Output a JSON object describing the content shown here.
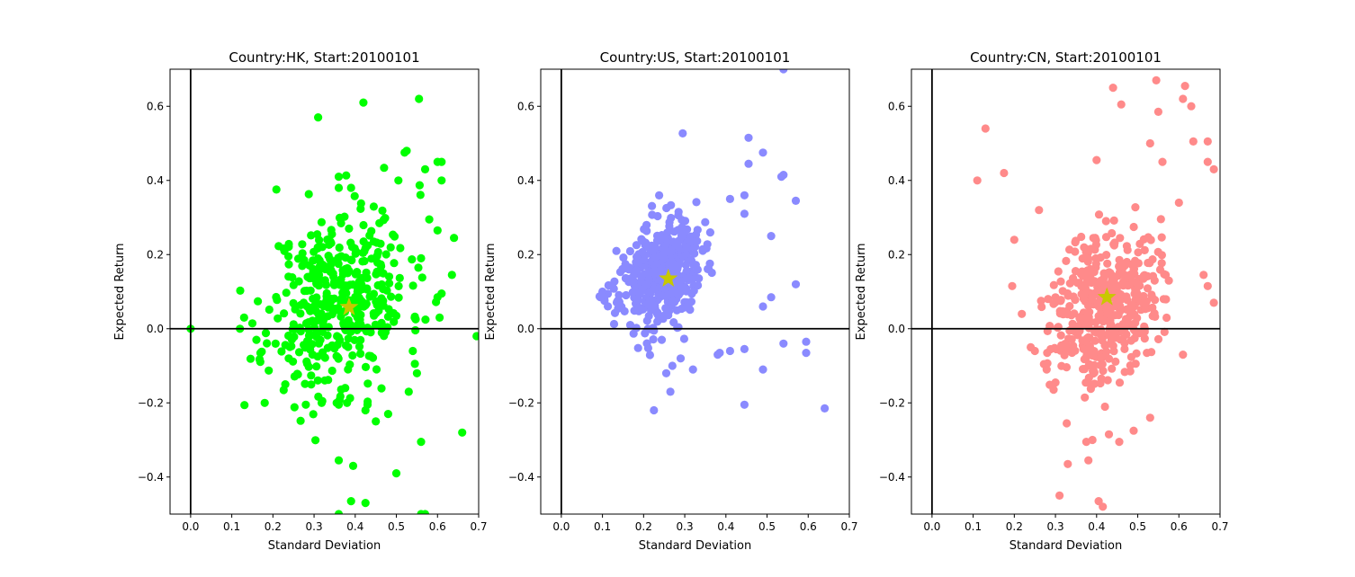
{
  "chart_data": [
    {
      "type": "scatter",
      "title": "Country:HK, Start:20100101",
      "xlabel": "Standard Deviation",
      "ylabel": "Expected Return",
      "xlim": [
        -0.05,
        0.7
      ],
      "ylim": [
        -0.5,
        0.7
      ],
      "xticks": [
        0.0,
        0.1,
        0.2,
        0.3,
        0.4,
        0.5,
        0.6,
        0.7
      ],
      "yticks": [
        -0.4,
        -0.2,
        0.0,
        0.2,
        0.4,
        0.6
      ],
      "xtick_labels": [
        "0.0",
        "0.1",
        "0.2",
        "0.3",
        "0.4",
        "0.5",
        "0.6",
        "0.7"
      ],
      "ytick_labels": [
        "−0.4",
        "−0.2",
        "0.0",
        "0.2",
        "0.4",
        "0.6"
      ],
      "grid": false,
      "point_color": "#00ff00",
      "marker_color": "#c8c800",
      "marker": {
        "x": 0.385,
        "y": 0.058
      },
      "cluster": {
        "mx": 0.36,
        "my": 0.08,
        "sx": 0.085,
        "sy": 0.12,
        "n": 420,
        "seed": 11
      },
      "points": [
        [
          0.0,
          0.0
        ],
        [
          0.31,
          0.57
        ],
        [
          0.42,
          0.61
        ],
        [
          0.555,
          0.62
        ],
        [
          0.52,
          0.475
        ],
        [
          0.525,
          0.48
        ],
        [
          0.6,
          0.45
        ],
        [
          0.61,
          0.45
        ],
        [
          0.57,
          0.43
        ],
        [
          0.61,
          0.4
        ],
        [
          0.505,
          0.4
        ],
        [
          0.58,
          0.295
        ],
        [
          0.6,
          0.265
        ],
        [
          0.64,
          0.245
        ],
        [
          0.56,
          0.19
        ],
        [
          0.635,
          0.145
        ],
        [
          0.6,
          0.085
        ],
        [
          0.61,
          0.095
        ],
        [
          0.605,
          0.03
        ],
        [
          0.695,
          -0.02
        ],
        [
          0.54,
          -0.06
        ],
        [
          0.545,
          -0.095
        ],
        [
          0.55,
          -0.12
        ],
        [
          0.53,
          -0.17
        ],
        [
          0.48,
          -0.23
        ],
        [
          0.43,
          -0.205
        ],
        [
          0.425,
          -0.22
        ],
        [
          0.45,
          -0.25
        ],
        [
          0.38,
          -0.2
        ],
        [
          0.36,
          -0.205
        ],
        [
          0.355,
          -0.2
        ],
        [
          0.32,
          -0.195
        ],
        [
          0.28,
          -0.205
        ],
        [
          0.23,
          -0.15
        ],
        [
          0.18,
          -0.2
        ],
        [
          0.36,
          -0.355
        ],
        [
          0.395,
          -0.37
        ],
        [
          0.5,
          -0.39
        ],
        [
          0.56,
          -0.305
        ],
        [
          0.66,
          -0.28
        ],
        [
          0.39,
          -0.465
        ],
        [
          0.425,
          -0.47
        ],
        [
          0.12,
          0.0
        ],
        [
          0.13,
          0.03
        ],
        [
          0.16,
          -0.03
        ],
        [
          0.36,
          0.41
        ],
        [
          0.36,
          0.38
        ],
        [
          0.39,
          0.38
        ],
        [
          0.385,
          0.27
        ],
        [
          0.56,
          -0.5
        ],
        [
          0.57,
          -0.5
        ],
        [
          0.36,
          -0.5
        ]
      ]
    },
    {
      "type": "scatter",
      "title": "Country:US, Start:20100101",
      "xlabel": "Standard Deviation",
      "ylabel": "Expected Return",
      "xlim": [
        -0.05,
        0.7
      ],
      "ylim": [
        -0.5,
        0.7
      ],
      "xticks": [
        0.0,
        0.1,
        0.2,
        0.3,
        0.4,
        0.5,
        0.6,
        0.7
      ],
      "yticks": [
        -0.4,
        -0.2,
        0.0,
        0.2,
        0.4,
        0.6
      ],
      "xtick_labels": [
        "0.0",
        "0.1",
        "0.2",
        "0.3",
        "0.4",
        "0.5",
        "0.6",
        "0.7"
      ],
      "ytick_labels": [
        "−0.4",
        "−0.2",
        "0.0",
        "0.2",
        "0.4",
        "0.6"
      ],
      "grid": false,
      "point_color": "#8a8aff",
      "marker_color": "#c8c800",
      "marker": {
        "x": 0.26,
        "y": 0.135
      },
      "cluster": {
        "mx": 0.24,
        "my": 0.145,
        "sx": 0.05,
        "sy": 0.07,
        "n": 440,
        "seed": 23
      },
      "points": [
        [
          0.54,
          0.7
        ],
        [
          0.295,
          0.527
        ],
        [
          0.455,
          0.515
        ],
        [
          0.49,
          0.475
        ],
        [
          0.455,
          0.445
        ],
        [
          0.54,
          0.415
        ],
        [
          0.535,
          0.41
        ],
        [
          0.57,
          0.345
        ],
        [
          0.445,
          0.36
        ],
        [
          0.41,
          0.35
        ],
        [
          0.445,
          0.31
        ],
        [
          0.51,
          0.25
        ],
        [
          0.57,
          0.12
        ],
        [
          0.51,
          0.085
        ],
        [
          0.49,
          0.06
        ],
        [
          0.54,
          -0.04
        ],
        [
          0.595,
          -0.035
        ],
        [
          0.595,
          -0.065
        ],
        [
          0.49,
          -0.11
        ],
        [
          0.445,
          -0.055
        ],
        [
          0.41,
          -0.06
        ],
        [
          0.38,
          -0.07
        ],
        [
          0.385,
          -0.065
        ],
        [
          0.32,
          -0.11
        ],
        [
          0.29,
          -0.08
        ],
        [
          0.27,
          -0.1
        ],
        [
          0.255,
          -0.12
        ],
        [
          0.265,
          -0.17
        ],
        [
          0.225,
          -0.22
        ],
        [
          0.445,
          -0.205
        ],
        [
          0.64,
          -0.215
        ],
        [
          0.1,
          0.1
        ],
        [
          0.105,
          0.075
        ],
        [
          0.095,
          0.085
        ]
      ]
    },
    {
      "type": "scatter",
      "title": "Country:CN, Start:20100101",
      "xlabel": "Standard Deviation",
      "ylabel": "Expected Return",
      "xlim": [
        -0.05,
        0.7
      ],
      "ylim": [
        -0.5,
        0.7
      ],
      "xticks": [
        0.0,
        0.1,
        0.2,
        0.3,
        0.4,
        0.5,
        0.6,
        0.7
      ],
      "yticks": [
        -0.4,
        -0.2,
        0.0,
        0.2,
        0.4,
        0.6
      ],
      "xtick_labels": [
        "0.0",
        "0.1",
        "0.2",
        "0.3",
        "0.4",
        "0.5",
        "0.6",
        "0.7"
      ],
      "ytick_labels": [
        "−0.4",
        "−0.2",
        "0.0",
        "0.2",
        "0.4",
        "0.6"
      ],
      "grid": false,
      "point_color": "#ff8a8a",
      "marker_color": "#c8c800",
      "marker": {
        "x": 0.425,
        "y": 0.085
      },
      "cluster": {
        "mx": 0.42,
        "my": 0.07,
        "sx": 0.065,
        "sy": 0.1,
        "n": 440,
        "seed": 37
      },
      "points": [
        [
          0.13,
          0.54
        ],
        [
          0.11,
          0.4
        ],
        [
          0.175,
          0.42
        ],
        [
          0.2,
          0.24
        ],
        [
          0.26,
          0.32
        ],
        [
          0.44,
          0.65
        ],
        [
          0.46,
          0.605
        ],
        [
          0.545,
          0.67
        ],
        [
          0.61,
          0.62
        ],
        [
          0.615,
          0.655
        ],
        [
          0.63,
          0.6
        ],
        [
          0.55,
          0.585
        ],
        [
          0.635,
          0.505
        ],
        [
          0.67,
          0.505
        ],
        [
          0.53,
          0.5
        ],
        [
          0.67,
          0.45
        ],
        [
          0.685,
          0.43
        ],
        [
          0.56,
          0.45
        ],
        [
          0.4,
          0.455
        ],
        [
          0.6,
          0.34
        ],
        [
          0.66,
          0.145
        ],
        [
          0.67,
          0.115
        ],
        [
          0.685,
          0.07
        ],
        [
          0.61,
          -0.07
        ],
        [
          0.53,
          -0.24
        ],
        [
          0.49,
          -0.275
        ],
        [
          0.43,
          -0.285
        ],
        [
          0.455,
          -0.305
        ],
        [
          0.39,
          -0.3
        ],
        [
          0.375,
          -0.305
        ],
        [
          0.38,
          -0.355
        ],
        [
          0.33,
          -0.365
        ],
        [
          0.31,
          -0.45
        ],
        [
          0.405,
          -0.465
        ],
        [
          0.415,
          -0.48
        ],
        [
          0.24,
          -0.05
        ],
        [
          0.25,
          -0.06
        ],
        [
          0.3,
          -0.145
        ],
        [
          0.28,
          -0.065
        ],
        [
          0.195,
          0.115
        ]
      ]
    }
  ]
}
